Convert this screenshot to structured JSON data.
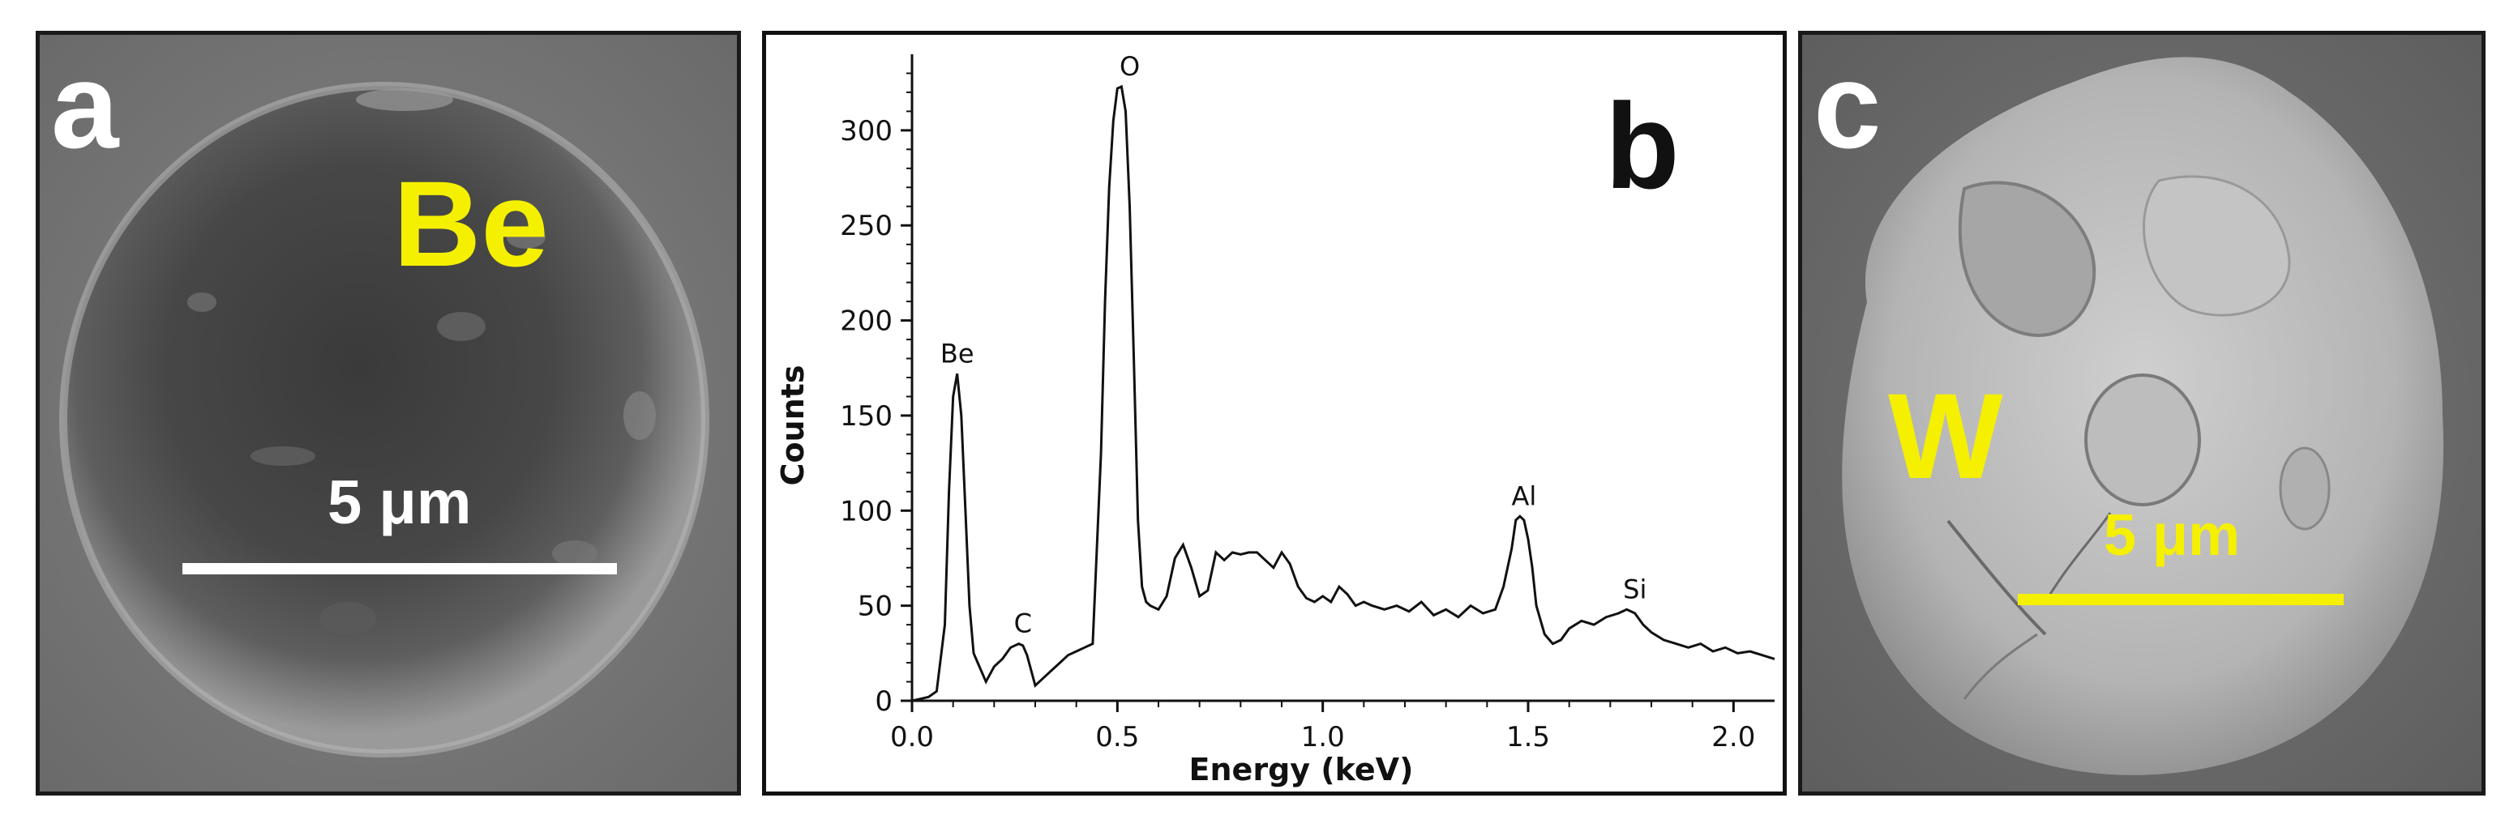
{
  "panels": {
    "a": {
      "letter": "a",
      "element_label": "Be",
      "scale_label": "5 μm",
      "scale_color": "#ffffff"
    },
    "b": {
      "letter": "b"
    },
    "c": {
      "letter": "c",
      "element_label": "W",
      "scale_label": "5 μm",
      "scale_color": "#f5f000"
    }
  },
  "colors": {
    "label_yellow": "#f5f000",
    "letter_white": "#ffffff",
    "letter_black": "#111111"
  },
  "chart_data": {
    "type": "line",
    "xlabel": "Energy (keV)",
    "ylabel": "Counts",
    "xlim": [
      0,
      2.1
    ],
    "ylim": [
      0,
      340
    ],
    "x_ticks": [
      "0.0",
      "0.5",
      "1.0",
      "1.5",
      "2.0"
    ],
    "y_ticks": [
      "0",
      "50",
      "100",
      "150",
      "200",
      "250",
      "300"
    ],
    "peak_labels": [
      {
        "text": "Be",
        "x": 0.11,
        "y": 172
      },
      {
        "text": "C",
        "x": 0.27,
        "y": 30
      },
      {
        "text": "O",
        "x": 0.53,
        "y": 323
      },
      {
        "text": "Al",
        "x": 1.49,
        "y": 97
      },
      {
        "text": "Si",
        "x": 1.76,
        "y": 48
      }
    ],
    "series": [
      {
        "x": [
          0.0,
          0.02,
          0.04,
          0.06,
          0.08,
          0.09,
          0.1,
          0.11,
          0.12,
          0.13,
          0.14,
          0.15,
          0.16,
          0.18,
          0.2,
          0.22,
          0.24,
          0.26,
          0.27,
          0.28,
          0.3,
          0.32,
          0.34,
          0.36,
          0.38,
          0.4,
          0.42,
          0.44,
          0.46,
          0.47,
          0.48,
          0.49,
          0.5,
          0.51,
          0.52,
          0.53,
          0.54,
          0.55,
          0.56,
          0.57,
          0.58,
          0.6,
          0.62,
          0.64,
          0.66,
          0.68,
          0.7,
          0.72,
          0.74,
          0.76,
          0.78,
          0.8,
          0.82,
          0.84,
          0.86,
          0.88,
          0.9,
          0.92,
          0.94,
          0.96,
          0.98,
          1.0,
          1.02,
          1.04,
          1.06,
          1.08,
          1.1,
          1.12,
          1.15,
          1.18,
          1.21,
          1.24,
          1.27,
          1.3,
          1.33,
          1.36,
          1.39,
          1.42,
          1.44,
          1.46,
          1.47,
          1.48,
          1.49,
          1.5,
          1.51,
          1.52,
          1.54,
          1.56,
          1.58,
          1.6,
          1.63,
          1.66,
          1.69,
          1.72,
          1.74,
          1.76,
          1.78,
          1.8,
          1.83,
          1.86,
          1.89,
          1.92,
          1.95,
          1.98,
          2.01,
          2.04,
          2.07,
          2.1
        ],
        "y": [
          0,
          1,
          2,
          5,
          40,
          110,
          160,
          172,
          150,
          100,
          50,
          25,
          20,
          10,
          18,
          22,
          28,
          30,
          29,
          24,
          8,
          12,
          16,
          20,
          24,
          26,
          28,
          30,
          130,
          210,
          270,
          305,
          322,
          323,
          310,
          260,
          180,
          95,
          60,
          52,
          50,
          48,
          55,
          75,
          82,
          70,
          55,
          58,
          78,
          74,
          78,
          77,
          78,
          78,
          74,
          70,
          78,
          72,
          60,
          54,
          52,
          55,
          52,
          60,
          56,
          50,
          52,
          50,
          48,
          50,
          47,
          52,
          45,
          48,
          44,
          50,
          46,
          48,
          60,
          80,
          95,
          97,
          95,
          85,
          70,
          50,
          35,
          30,
          32,
          38,
          42,
          40,
          44,
          46,
          48,
          46,
          40,
          36,
          32,
          30,
          28,
          30,
          26,
          28,
          25,
          26,
          24,
          22
        ]
      }
    ]
  }
}
